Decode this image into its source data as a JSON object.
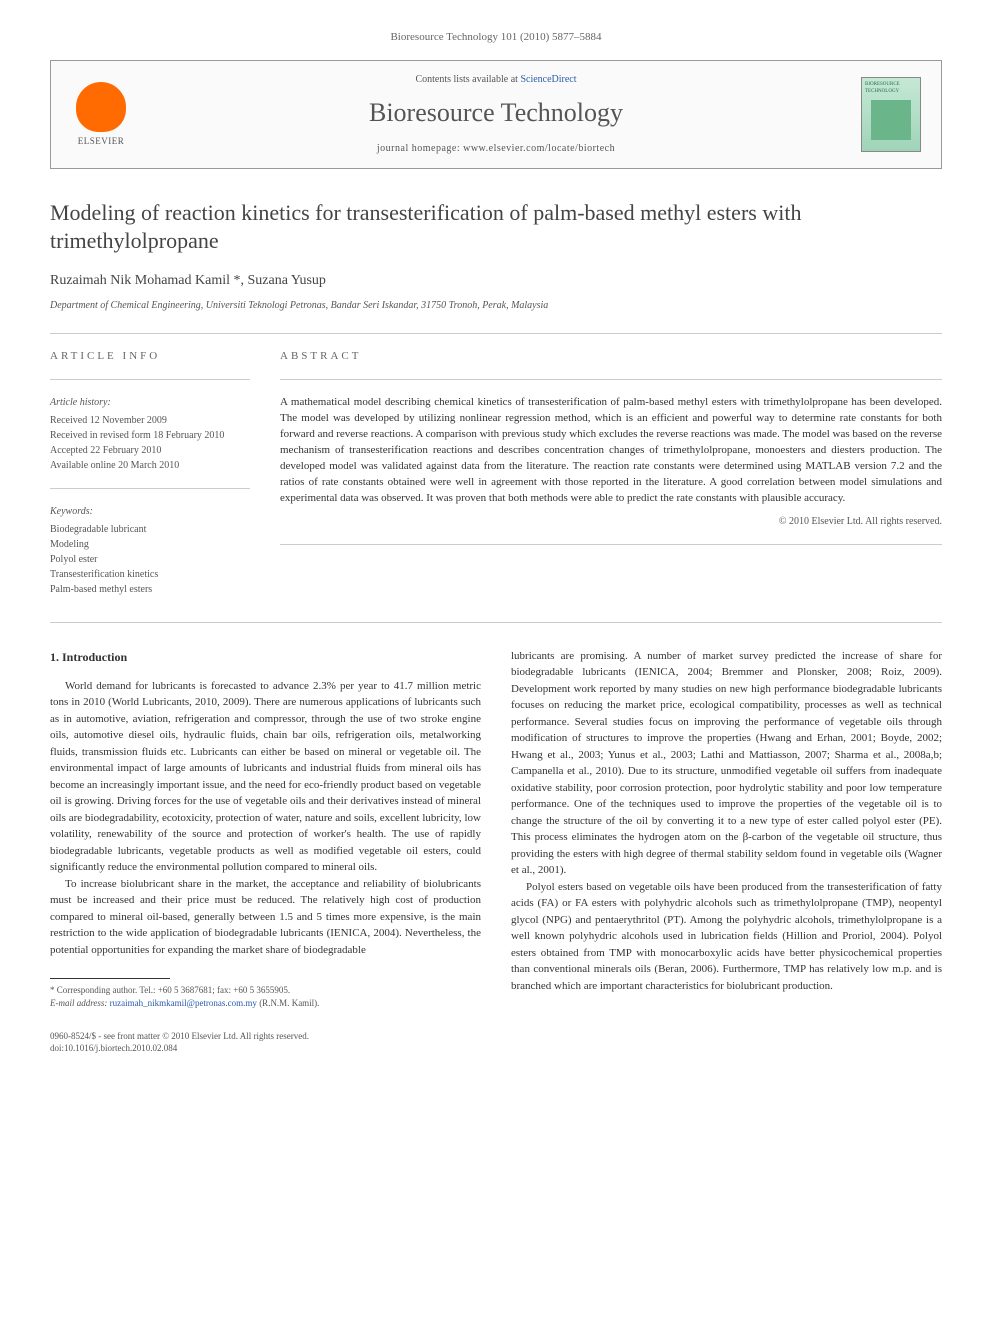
{
  "header": {
    "citation": "Bioresource Technology 101 (2010) 5877–5884",
    "contents_prefix": "Contents lists available at ",
    "contents_link": "ScienceDirect",
    "journal_name": "Bioresource Technology",
    "homepage_prefix": "journal homepage: ",
    "homepage_url": "www.elsevier.com/locate/biortech",
    "publisher": "ELSEVIER",
    "cover_title": "BIORESOURCE TECHNOLOGY"
  },
  "title": "Modeling of reaction kinetics for transesterification of palm-based methyl esters with trimethylolpropane",
  "authors": "Ruzaimah Nik Mohamad Kamil *, Suzana Yusup",
  "affiliation": "Department of Chemical Engineering, Universiti Teknologi Petronas, Bandar Seri Iskandar, 31750 Tronoh, Perak, Malaysia",
  "article_info": {
    "header": "ARTICLE INFO",
    "history_label": "Article history:",
    "history": [
      "Received 12 November 2009",
      "Received in revised form 18 February 2010",
      "Accepted 22 February 2010",
      "Available online 20 March 2010"
    ],
    "keywords_label": "Keywords:",
    "keywords": [
      "Biodegradable lubricant",
      "Modeling",
      "Polyol ester",
      "Transesterification kinetics",
      "Palm-based methyl esters"
    ]
  },
  "abstract": {
    "header": "ABSTRACT",
    "text": "A mathematical model describing chemical kinetics of transesterification of palm-based methyl esters with trimethylolpropane has been developed. The model was developed by utilizing nonlinear regression method, which is an efficient and powerful way to determine rate constants for both forward and reverse reactions. A comparison with previous study which excludes the reverse reactions was made. The model was based on the reverse mechanism of transesterification reactions and describes concentration changes of trimethylolpropane, monoesters and diesters production. The developed model was validated against data from the literature. The reaction rate constants were determined using MATLAB version 7.2 and the ratios of rate constants obtained were well in agreement with those reported in the literature. A good correlation between model simulations and experimental data was observed. It was proven that both methods were able to predict the rate constants with plausible accuracy.",
    "copyright": "© 2010 Elsevier Ltd. All rights reserved."
  },
  "body": {
    "section_heading": "1. Introduction",
    "col1_p1": "World demand for lubricants is forecasted to advance 2.3% per year to 41.7 million metric tons in 2010 (World Lubricants, 2010, 2009). There are numerous applications of lubricants such as in automotive, aviation, refrigeration and compressor, through the use of two stroke engine oils, automotive diesel oils, hydraulic fluids, chain bar oils, refrigeration oils, metalworking fluids, transmission fluids etc. Lubricants can either be based on mineral or vegetable oil. The environmental impact of large amounts of lubricants and industrial fluids from mineral oils has become an increasingly important issue, and the need for eco-friendly product based on vegetable oil is growing. Driving forces for the use of vegetable oils and their derivatives instead of mineral oils are biodegradability, ecotoxicity, protection of water, nature and soils, excellent lubricity, low volatility, renewability of the source and protection of worker's health. The use of rapidly biodegradable lubricants, vegetable products as well as modified vegetable oil esters, could significantly reduce the environmental pollution compared to mineral oils.",
    "col1_p2": "To increase biolubricant share in the market, the acceptance and reliability of biolubricants must be increased and their price must be reduced. The relatively high cost of production compared to mineral oil-based, generally between 1.5 and 5 times more expensive, is the main restriction to the wide application of biodegradable lubricants (IENICA, 2004). Nevertheless, the potential opportunities for expanding the market share of biodegradable",
    "col2_p1": "lubricants are promising. A number of market survey predicted the increase of share for biodegradable lubricants (IENICA, 2004; Bremmer and Plonsker, 2008; Roiz, 2009). Development work reported by many studies on new high performance biodegradable lubricants focuses on reducing the market price, ecological compatibility, processes as well as technical performance. Several studies focus on improving the performance of vegetable oils through modification of structures to improve the properties (Hwang and Erhan, 2001; Boyde, 2002; Hwang et al., 2003; Yunus et al., 2003; Lathi and Mattiasson, 2007; Sharma et al., 2008a,b; Campanella et al., 2010). Due to its structure, unmodified vegetable oil suffers from inadequate oxidative stability, poor corrosion protection, poor hydrolytic stability and poor low temperature performance. One of the techniques used to improve the properties of the vegetable oil is to change the structure of the oil by converting it to a new type of ester called polyol ester (PE). This process eliminates the hydrogen atom on the β-carbon of the vegetable oil structure, thus providing the esters with high degree of thermal stability seldom found in vegetable oils (Wagner et al., 2001).",
    "col2_p2": "Polyol esters based on vegetable oils have been produced from the transesterification of fatty acids (FA) or FA esters with polyhydric alcohols such as trimethylolpropane (TMP), neopentyl glycol (NPG) and pentaerythritol (PT). Among the polyhydric alcohols, trimethylolpropane is a well known polyhydric alcohols used in lubrication fields (Hillion and Proriol, 2004). Polyol esters obtained from TMP with monocarboxylic acids have better physicochemical properties than conventional minerals oils (Beran, 2006). Furthermore, TMP has relatively low m.p. and is branched which are important characteristics for biolubricant production."
  },
  "footnote": {
    "corresponding": "* Corresponding author. Tel.: +60 5 3687681; fax: +60 5 3655905.",
    "email_label": "E-mail address:",
    "email": "ruzaimah_nikmkamil@petronas.com.my",
    "email_suffix": "(R.N.M. Kamil)."
  },
  "bottom": {
    "issn": "0960-8524/$ - see front matter © 2010 Elsevier Ltd. All rights reserved.",
    "doi": "doi:10.1016/j.biortech.2010.02.084"
  }
}
